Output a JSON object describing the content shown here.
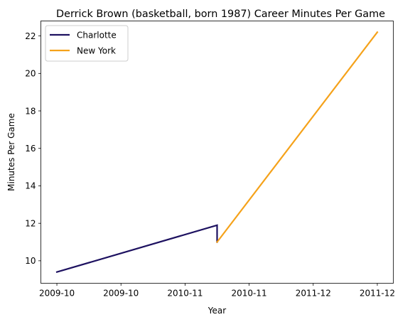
{
  "chart_data": {
    "type": "line",
    "title": "Derrick Brown (basketball, born 1987) Career Minutes Per Game",
    "xlabel": "Year",
    "ylabel": "Minutes Per Game",
    "x_tick_labels": [
      "2009-10",
      "2009-10",
      "2010-11",
      "2010-11",
      "2011-12",
      "2011-12"
    ],
    "x_tick_positions": [
      0,
      0.4,
      0.8,
      1.2,
      1.6,
      2.0
    ],
    "xlim": [
      -0.1,
      2.1
    ],
    "ylim": [
      8.8,
      22.8
    ],
    "y_ticks": [
      10,
      12,
      14,
      16,
      18,
      20,
      22
    ],
    "legend_position": "upper-left",
    "grid": false,
    "series": [
      {
        "name": "Charlotte",
        "color": "#1d1160",
        "points": [
          {
            "x": 0.0,
            "y": 9.4
          },
          {
            "x": 1.0,
            "y": 11.9
          },
          {
            "x": 1.0,
            "y": 11.0
          }
        ]
      },
      {
        "name": "New York",
        "color": "#f5a21a",
        "points": [
          {
            "x": 1.0,
            "y": 11.0
          },
          {
            "x": 2.0,
            "y": 22.2
          }
        ]
      }
    ]
  }
}
